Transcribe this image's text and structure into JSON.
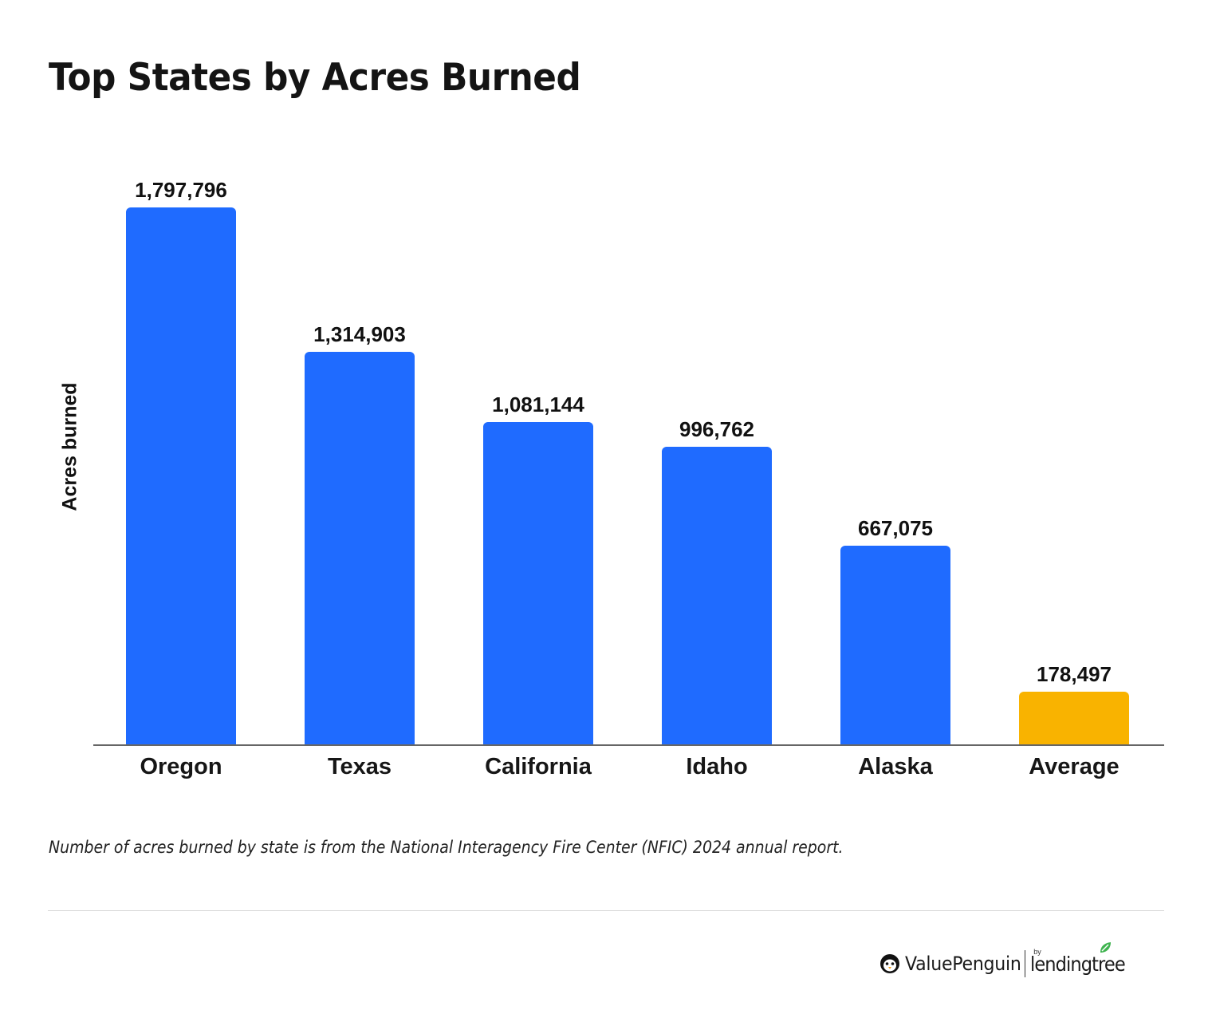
{
  "title": "Top States by Acres Burned",
  "footnote": "Number of acres burned by state is from the National Interagency Fire Center (NFIC) 2024 annual report.",
  "brand": {
    "name": "ValuePenguin",
    "by": "by",
    "partner": "lendingtree",
    "icons": [
      "penguin-icon",
      "leaf-icon"
    ]
  },
  "colors": {
    "states": "#1f6bff",
    "average": "#f9b300",
    "axis": "#666666",
    "text": "#111111"
  },
  "bars": [
    {
      "label": "Oregon",
      "value_label": "1,797,796",
      "value": 1797796,
      "color": "#1f6bff"
    },
    {
      "label": "Texas",
      "value_label": "1,314,903",
      "value": 1314903,
      "color": "#1f6bff"
    },
    {
      "label": "California",
      "value_label": "1,081,144",
      "value": 1081144,
      "color": "#1f6bff"
    },
    {
      "label": "Idaho",
      "value_label": "996,762",
      "value": 996762,
      "color": "#1f6bff"
    },
    {
      "label": "Alaska",
      "value_label": "667,075",
      "value": 667075,
      "color": "#1f6bff"
    },
    {
      "label": "Average",
      "value_label": "178,497",
      "value": 178497,
      "color": "#f9b300"
    }
  ],
  "chart_data": {
    "type": "bar",
    "title": "Top States by Acres Burned",
    "xlabel": "",
    "ylabel": "Acres burned",
    "categories": [
      "Oregon",
      "Texas",
      "California",
      "Idaho",
      "Alaska",
      "Average"
    ],
    "values": [
      1797796,
      1314903,
      1081144,
      996762,
      667075,
      178497
    ],
    "data_labels": [
      "1,797,796",
      "1,314,903",
      "1,081,144",
      "996,762",
      "667,075",
      "178,497"
    ],
    "highlight": {
      "category": "Average",
      "color": "#f9b300"
    },
    "bar_color": "#1f6bff",
    "ylim": [
      0,
      1800000
    ],
    "grid": false,
    "legend": "none",
    "y_ticks_shown": false,
    "footnote": "Number of acres burned by state is from the National Interagency Fire Center (NFIC) 2024 annual report."
  }
}
